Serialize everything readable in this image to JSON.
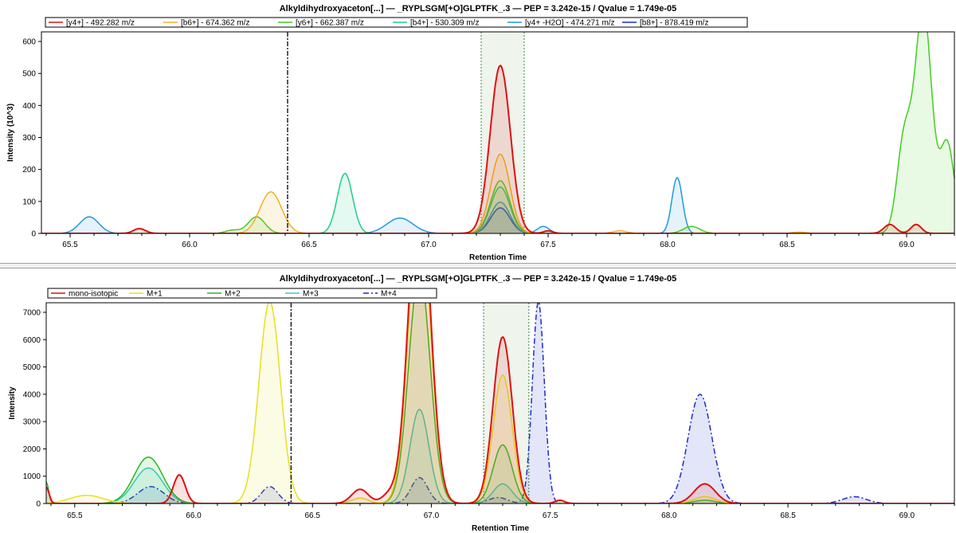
{
  "chart_data": [
    {
      "type": "area",
      "title": "Alkyldihydroxyaceton[...]  —  _RYPLSGM[+O]GLPTFK_.3  —  PEP = 3.242e-15 / Qvalue = 1.749e-05",
      "xlabel": "Retention Time",
      "ylabel": "Intensity (10^3)",
      "xlim": [
        65.38,
        69.2
      ],
      "ylim": [
        0,
        630
      ],
      "xticks": [
        65.5,
        66.0,
        66.5,
        67.0,
        67.5,
        68.0,
        68.5,
        69.0
      ],
      "xtick_labels": [
        "65.5",
        "66.0",
        "66.5",
        "67.0",
        "67.5",
        "68.0",
        "68.5",
        "69.0"
      ],
      "yticks": [
        0,
        100,
        200,
        300,
        400,
        500,
        600
      ],
      "ytick_labels": [
        "0",
        "100",
        "200",
        "300",
        "400",
        "500",
        "600"
      ],
      "grid": false,
      "legend_position": "top",
      "markers": [
        {
          "kind": "rt_line",
          "x": 66.41,
          "style": "dash-dot",
          "color": "#000000"
        },
        {
          "kind": "window",
          "x0": 67.22,
          "x1": 67.4,
          "color": "#3a8a3a"
        }
      ],
      "series": [
        {
          "name": "[y4+] - 492.282 m/z",
          "color": "#e01010",
          "width": 2,
          "peaks": [
            [
              65.79,
              15,
              0.025
            ],
            [
              67.3,
              525,
              0.042
            ],
            [
              67.5,
              8,
              0.02
            ],
            [
              68.93,
              28,
              0.025
            ],
            [
              69.04,
              28,
              0.022
            ]
          ]
        },
        {
          "name": "[b6+] - 674.362 m/z",
          "color": "#f0b020",
          "width": 1.5,
          "peaks": [
            [
              66.34,
              130,
              0.045
            ],
            [
              67.3,
              248,
              0.04
            ],
            [
              67.8,
              8,
              0.03
            ],
            [
              68.55,
              4,
              0.03
            ]
          ]
        },
        {
          "name": "[y6+] - 662.387 m/z",
          "color": "#44cc22",
          "width": 1.5,
          "peaks": [
            [
              66.18,
              10,
              0.03
            ],
            [
              66.28,
              52,
              0.035
            ],
            [
              67.3,
              165,
              0.04
            ],
            [
              68.1,
              22,
              0.035
            ],
            [
              68.99,
              290,
              0.03
            ],
            [
              69.07,
              700,
              0.035
            ],
            [
              69.17,
              280,
              0.03
            ]
          ]
        },
        {
          "name": "[b4+] - 530.309 m/z",
          "color": "#22cc88",
          "width": 1.5,
          "peaks": [
            [
              66.65,
              188,
              0.032
            ],
            [
              67.3,
              145,
              0.04
            ]
          ]
        },
        {
          "name": "[y4+ -H2O] - 474.271 m/z",
          "color": "#2299dd",
          "width": 1.5,
          "peaks": [
            [
              65.58,
              52,
              0.04
            ],
            [
              66.88,
              48,
              0.055
            ],
            [
              67.3,
              98,
              0.04
            ],
            [
              67.48,
              22,
              0.025
            ],
            [
              68.04,
              175,
              0.022
            ]
          ]
        },
        {
          "name": "[b8+] - 878.419 m/z",
          "color": "#1a2ad0",
          "width": 1.5,
          "peaks": [
            [
              67.3,
              80,
              0.04
            ]
          ]
        }
      ]
    },
    {
      "type": "area",
      "title": "Alkyldihydroxyaceton[...]  —  _RYPLSGM[+O]GLPTFK_.3  —  PEP = 3.242e-15 / Qvalue = 1.749e-05",
      "xlabel": "Retention Time",
      "ylabel": "Intensity",
      "xlim": [
        65.38,
        69.2
      ],
      "ylim": [
        0,
        7350
      ],
      "xticks": [
        65.5,
        66.0,
        66.5,
        67.0,
        67.5,
        68.0,
        68.5,
        69.0
      ],
      "xtick_labels": [
        "65.5",
        "66.0",
        "66.5",
        "67.0",
        "67.5",
        "68.0",
        "68.5",
        "69.0"
      ],
      "yticks": [
        0,
        1000,
        2000,
        3000,
        4000,
        5000,
        6000,
        7000
      ],
      "ytick_labels": [
        "0",
        "1000",
        "2000",
        "3000",
        "4000",
        "5000",
        "6000",
        "7000"
      ],
      "grid": false,
      "legend_position": "top",
      "markers": [
        {
          "kind": "rt_line",
          "x": 66.41,
          "style": "dash-dot",
          "color": "#000000"
        },
        {
          "kind": "window",
          "x0": 67.22,
          "x1": 67.41,
          "color": "#3a8a3a"
        }
      ],
      "series": [
        {
          "name": "mono-isotopic",
          "color": "#e01010",
          "width": 2,
          "peaks": [
            [
              65.38,
              600,
              0.012
            ],
            [
              65.94,
              1050,
              0.025
            ],
            [
              66.7,
              520,
              0.035
            ],
            [
              66.82,
              300,
              0.03
            ],
            [
              66.95,
              12000,
              0.045
            ],
            [
              67.3,
              6100,
              0.04
            ],
            [
              67.54,
              120,
              0.02
            ],
            [
              68.15,
              720,
              0.045
            ]
          ]
        },
        {
          "name": "M+1",
          "color": "#e8e020",
          "width": 1.5,
          "peaks": [
            [
              65.55,
              300,
              0.07
            ],
            [
              66.32,
              7400,
              0.045
            ],
            [
              66.7,
              200,
              0.035
            ],
            [
              66.95,
              11000,
              0.045
            ],
            [
              67.3,
              4700,
              0.04
            ],
            [
              68.15,
              250,
              0.045
            ]
          ]
        },
        {
          "name": "M+2",
          "color": "#22bb22",
          "width": 1.5,
          "peaks": [
            [
              65.38,
              800,
              0.01
            ],
            [
              65.81,
              1700,
              0.06
            ],
            [
              66.95,
              8500,
              0.045
            ],
            [
              67.3,
              2150,
              0.04
            ],
            [
              68.15,
              120,
              0.045
            ]
          ]
        },
        {
          "name": "M+3",
          "color": "#33cccc",
          "width": 1.5,
          "peaks": [
            [
              65.81,
              1300,
              0.06
            ],
            [
              66.95,
              3450,
              0.04
            ],
            [
              67.3,
              720,
              0.04
            ]
          ]
        },
        {
          "name": "M+4",
          "color": "#1a2ad0",
          "width": 1.5,
          "dash": "7,3,2,3",
          "peaks": [
            [
              65.82,
              620,
              0.055
            ],
            [
              66.32,
              620,
              0.035
            ],
            [
              66.95,
              950,
              0.035
            ],
            [
              67.28,
              220,
              0.04
            ],
            [
              67.45,
              7400,
              0.025
            ],
            [
              68.13,
              4000,
              0.05
            ],
            [
              68.78,
              250,
              0.05
            ]
          ]
        }
      ]
    }
  ]
}
